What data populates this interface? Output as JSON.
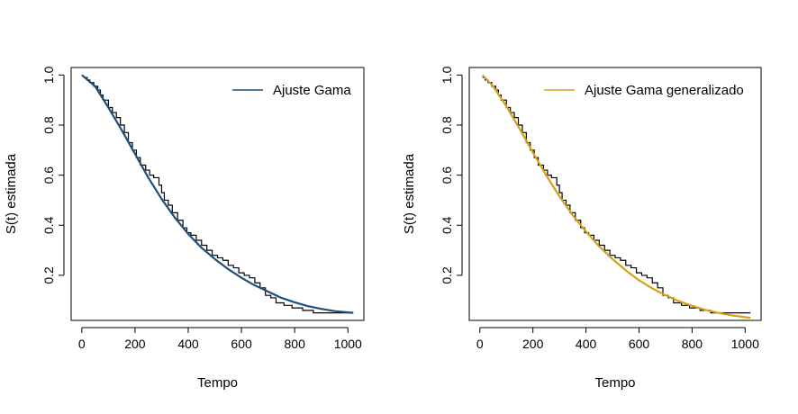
{
  "chart_data": [
    {
      "type": "line",
      "xlabel": "Tempo",
      "ylabel": "S(t) estimada",
      "xlim": [
        -40,
        1060
      ],
      "ylim": [
        0.02,
        1.03
      ],
      "xticks": [
        0,
        200,
        400,
        600,
        800,
        1000
      ],
      "yticks": [
        0.2,
        0.4,
        0.6,
        0.8,
        1.0
      ],
      "ytick_labels": [
        "0.2",
        "0.4",
        "0.6",
        "0.8",
        "1.0"
      ],
      "legend": {
        "label": "Ajuste Gama",
        "position": "top-right"
      },
      "series": [
        {
          "name": "Ajuste Gama",
          "style": "line",
          "color": "#1f4e79",
          "x": [
            0,
            50,
            100,
            150,
            200,
            250,
            300,
            350,
            400,
            450,
            500,
            550,
            600,
            650,
            700,
            750,
            800,
            850,
            900,
            950,
            1020
          ],
          "y": [
            1.0,
            0.955,
            0.87,
            0.78,
            0.685,
            0.59,
            0.505,
            0.43,
            0.365,
            0.31,
            0.265,
            0.225,
            0.19,
            0.16,
            0.135,
            0.11,
            0.092,
            0.077,
            0.066,
            0.057,
            0.05
          ]
        },
        {
          "style": "step",
          "color": "#000000",
          "x": [
            10,
            20,
            30,
            45,
            60,
            70,
            80,
            100,
            115,
            130,
            145,
            160,
            175,
            190,
            205,
            220,
            240,
            255,
            270,
            290,
            300,
            310,
            325,
            340,
            360,
            380,
            395,
            410,
            430,
            450,
            470,
            490,
            510,
            530,
            550,
            570,
            590,
            610,
            630,
            650,
            670,
            690,
            710,
            730,
            760,
            790,
            830,
            870,
            900,
            1020
          ],
          "y": [
            0.99,
            0.98,
            0.97,
            0.955,
            0.94,
            0.92,
            0.9,
            0.87,
            0.85,
            0.83,
            0.8,
            0.77,
            0.73,
            0.7,
            0.67,
            0.64,
            0.62,
            0.6,
            0.59,
            0.56,
            0.53,
            0.5,
            0.48,
            0.45,
            0.42,
            0.39,
            0.37,
            0.36,
            0.34,
            0.32,
            0.3,
            0.28,
            0.27,
            0.26,
            0.24,
            0.23,
            0.21,
            0.2,
            0.19,
            0.17,
            0.15,
            0.12,
            0.11,
            0.09,
            0.08,
            0.07,
            0.06,
            0.05,
            0.05,
            0.05
          ]
        }
      ]
    },
    {
      "type": "line",
      "xlabel": "Tempo",
      "ylabel": "S(t) estimada",
      "xlim": [
        -40,
        1060
      ],
      "ylim": [
        0.02,
        1.03
      ],
      "xticks": [
        0,
        200,
        400,
        600,
        800,
        1000
      ],
      "yticks": [
        0.2,
        0.4,
        0.6,
        0.8,
        1.0
      ],
      "ytick_labels": [
        "0.2",
        "0.4",
        "0.6",
        "0.8",
        "1.0"
      ],
      "legend": {
        "label": "Ajuste Gama generalizado",
        "position": "top-right"
      },
      "series": [
        {
          "name": "Ajuste Gama generalizado",
          "style": "line",
          "color": "#d4a017",
          "x": [
            10,
            50,
            100,
            150,
            200,
            250,
            300,
            350,
            400,
            450,
            500,
            550,
            600,
            650,
            700,
            750,
            800,
            850,
            900,
            950,
            1020
          ],
          "y": [
            1.0,
            0.955,
            0.875,
            0.785,
            0.69,
            0.6,
            0.515,
            0.44,
            0.375,
            0.315,
            0.265,
            0.22,
            0.18,
            0.148,
            0.12,
            0.097,
            0.078,
            0.062,
            0.05,
            0.04,
            0.03
          ]
        },
        {
          "style": "step",
          "color": "#000000",
          "x": [
            10,
            20,
            30,
            45,
            60,
            70,
            80,
            100,
            115,
            130,
            145,
            160,
            175,
            190,
            205,
            220,
            240,
            255,
            270,
            290,
            300,
            310,
            325,
            340,
            360,
            380,
            395,
            410,
            430,
            450,
            470,
            490,
            510,
            530,
            550,
            570,
            590,
            610,
            630,
            650,
            670,
            690,
            710,
            730,
            760,
            790,
            830,
            870,
            900,
            1020
          ],
          "y": [
            0.99,
            0.98,
            0.97,
            0.955,
            0.94,
            0.92,
            0.9,
            0.87,
            0.85,
            0.83,
            0.8,
            0.77,
            0.73,
            0.7,
            0.67,
            0.64,
            0.62,
            0.6,
            0.59,
            0.56,
            0.53,
            0.5,
            0.48,
            0.45,
            0.42,
            0.39,
            0.37,
            0.36,
            0.34,
            0.32,
            0.3,
            0.28,
            0.27,
            0.26,
            0.24,
            0.23,
            0.21,
            0.2,
            0.19,
            0.17,
            0.15,
            0.12,
            0.11,
            0.09,
            0.08,
            0.07,
            0.06,
            0.05,
            0.05,
            0.05
          ]
        }
      ]
    }
  ]
}
